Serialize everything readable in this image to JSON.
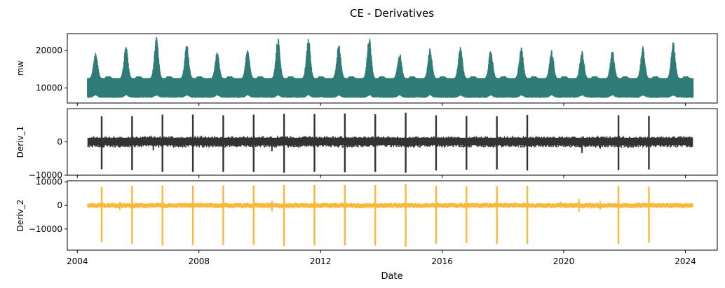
{
  "chart_data": {
    "type": "line",
    "title": "CE - Derivatives",
    "xlabel": "Date",
    "x_ticks": [
      "2004",
      "2008",
      "2012",
      "2016",
      "2020",
      "2024"
    ],
    "x_range": [
      "2003-09",
      "2025-01"
    ],
    "data_range": [
      "2004-05",
      "2024-04"
    ],
    "panels": [
      {
        "id": "mw",
        "ylabel": "mw",
        "color": "#2f7b78",
        "ylim": [
          6000,
          24500
        ],
        "yticks": [
          10000,
          20000
        ],
        "ytick_labels": [
          "10000",
          "20000"
        ],
        "baseline_band": [
          7800,
          12500
        ],
        "seasonal_peaks": [
          {
            "year": 2004.6,
            "value": 19600
          },
          {
            "year": 2005.6,
            "value": 21000
          },
          {
            "year": 2006.6,
            "value": 23500
          },
          {
            "year": 2007.6,
            "value": 21800
          },
          {
            "year": 2008.6,
            "value": 19500
          },
          {
            "year": 2009.6,
            "value": 20200
          },
          {
            "year": 2010.6,
            "value": 23600
          },
          {
            "year": 2011.6,
            "value": 23400
          },
          {
            "year": 2012.6,
            "value": 21800
          },
          {
            "year": 2013.6,
            "value": 23500
          },
          {
            "year": 2014.6,
            "value": 19300
          },
          {
            "year": 2015.6,
            "value": 20500
          },
          {
            "year": 2016.6,
            "value": 21500
          },
          {
            "year": 2017.6,
            "value": 20200
          },
          {
            "year": 2018.6,
            "value": 21000
          },
          {
            "year": 2019.6,
            "value": 20100
          },
          {
            "year": 2020.6,
            "value": 19800
          },
          {
            "year": 2021.6,
            "value": 20000
          },
          {
            "year": 2022.6,
            "value": 21000
          },
          {
            "year": 2023.6,
            "value": 22400
          }
        ]
      },
      {
        "id": "deriv1",
        "ylabel": "Deriv_1",
        "color": "#333333",
        "ylim": [
          -10000,
          10000
        ],
        "yticks": [
          -10000,
          0
        ],
        "ytick_labels": [
          "−10000",
          "0"
        ],
        "noise_band": [
          -1000,
          1200
        ],
        "spikes": [
          {
            "year": 2004.8,
            "high": 7700,
            "low": -8200
          },
          {
            "year": 2005.8,
            "high": 7700,
            "low": -8500
          },
          {
            "year": 2006.8,
            "high": 8200,
            "low": -9000
          },
          {
            "year": 2007.8,
            "high": 8200,
            "low": -9000
          },
          {
            "year": 2008.8,
            "high": 8000,
            "low": -9000
          },
          {
            "year": 2009.8,
            "high": 8200,
            "low": -9000
          },
          {
            "year": 2010.8,
            "high": 8400,
            "low": -9300
          },
          {
            "year": 2011.8,
            "high": 8400,
            "low": -9000
          },
          {
            "year": 2012.8,
            "high": 8500,
            "low": -9100
          },
          {
            "year": 2013.8,
            "high": 8300,
            "low": -9000
          },
          {
            "year": 2014.8,
            "high": 8800,
            "low": -9300
          },
          {
            "year": 2015.8,
            "high": 8000,
            "low": -8600
          },
          {
            "year": 2016.8,
            "high": 7800,
            "low": -8400
          },
          {
            "year": 2017.8,
            "high": 7700,
            "low": -8300
          },
          {
            "year": 2018.8,
            "high": 8100,
            "low": -8600
          },
          {
            "year": 2021.8,
            "high": 8000,
            "low": -8500
          },
          {
            "year": 2022.8,
            "high": 7800,
            "low": -8300
          }
        ],
        "minor_dips": [
          {
            "year": 2005.4,
            "low": -1700
          },
          {
            "year": 2006.5,
            "low": -2500
          },
          {
            "year": 2010.4,
            "low": -2800
          },
          {
            "year": 2020.6,
            "low": -3300
          },
          {
            "year": 2021.2,
            "low": -2000
          }
        ]
      },
      {
        "id": "deriv2",
        "ylabel": "Deriv_2",
        "color": "#fbb838",
        "ylim": [
          -19000,
          10500
        ],
        "yticks": [
          -10000,
          0,
          10000
        ],
        "ytick_labels": [
          "−10000",
          "0",
          "10000"
        ],
        "noise_band": [
          -700,
          700
        ],
        "spikes": [
          {
            "year": 2004.8,
            "high": 7800,
            "low": -15600
          },
          {
            "year": 2005.8,
            "high": 8300,
            "low": -16300
          },
          {
            "year": 2006.8,
            "high": 8400,
            "low": -17000
          },
          {
            "year": 2007.8,
            "high": 8400,
            "low": -16800
          },
          {
            "year": 2008.8,
            "high": 8500,
            "low": -16800
          },
          {
            "year": 2009.8,
            "high": 8500,
            "low": -16800
          },
          {
            "year": 2010.8,
            "high": 8800,
            "low": -17300
          },
          {
            "year": 2011.8,
            "high": 8800,
            "low": -17000
          },
          {
            "year": 2012.8,
            "high": 8800,
            "low": -17000
          },
          {
            "year": 2013.8,
            "high": 8700,
            "low": -17000
          },
          {
            "year": 2014.8,
            "high": 9000,
            "low": -17500
          },
          {
            "year": 2015.8,
            "high": 8300,
            "low": -16300
          },
          {
            "year": 2016.8,
            "high": 8000,
            "low": -16000
          },
          {
            "year": 2017.8,
            "high": 8100,
            "low": -16300
          },
          {
            "year": 2018.8,
            "high": 8300,
            "low": -16300
          },
          {
            "year": 2021.8,
            "high": 8300,
            "low": -16300
          },
          {
            "year": 2022.8,
            "high": 7900,
            "low": -15800
          }
        ],
        "minor_spikes": [
          {
            "year": 2005.4,
            "high": 1500,
            "low": -2000
          },
          {
            "year": 2010.4,
            "high": 2000,
            "low": -2500
          },
          {
            "year": 2019.9,
            "high": 1700,
            "low": -1000
          },
          {
            "year": 2020.5,
            "high": 2800,
            "low": -2600
          },
          {
            "year": 2021.2,
            "high": 1800,
            "low": -1800
          }
        ]
      }
    ]
  }
}
